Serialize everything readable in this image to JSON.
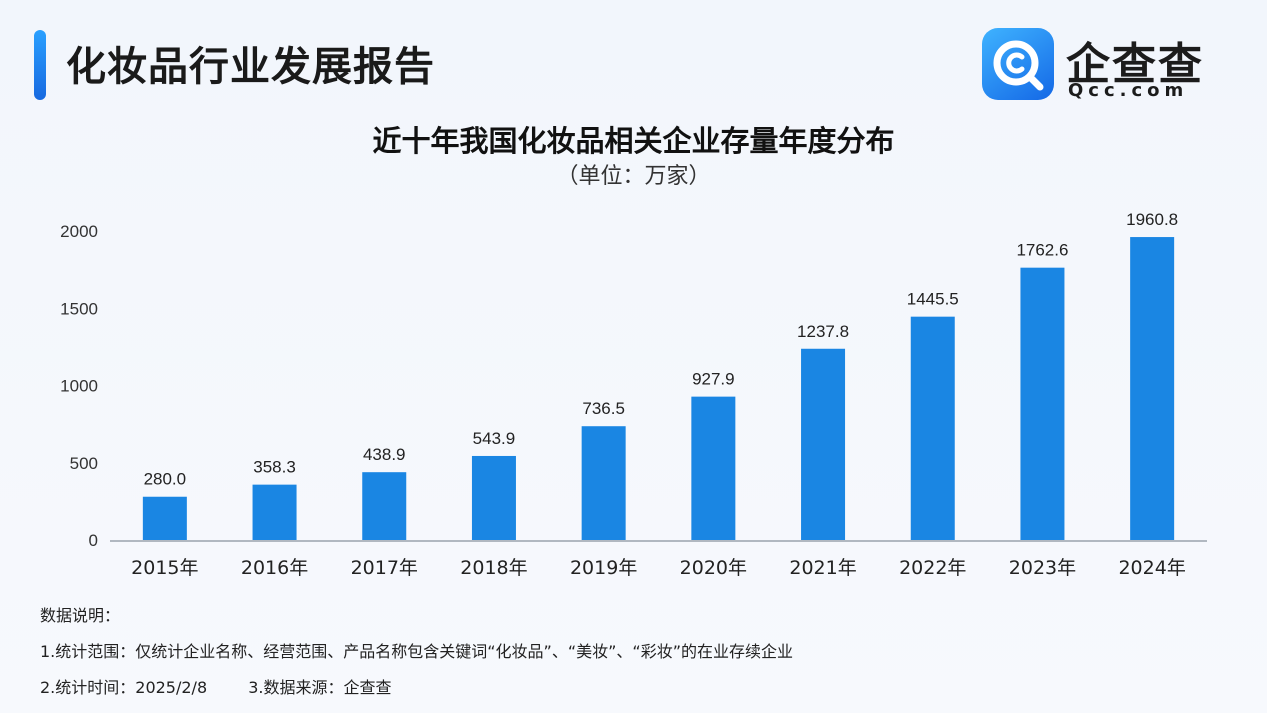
{
  "header": {
    "title": "化妆品行业发展报告"
  },
  "brand": {
    "name": "企查查",
    "domain": "Qcc.com",
    "icon": "qcc-logo-icon"
  },
  "colors": {
    "bar": "#1a86e3",
    "accent": "#1f7cf0",
    "axis": "#9aa3ad"
  },
  "chart_data": {
    "type": "bar",
    "title": "近十年我国化妆品相关企业存量年度分布",
    "subtitle": "（单位：万家）",
    "categories": [
      "2015年",
      "2016年",
      "2017年",
      "2018年",
      "2019年",
      "2020年",
      "2021年",
      "2022年",
      "2023年",
      "2024年"
    ],
    "values": [
      280.0,
      358.3,
      438.9,
      543.9,
      736.5,
      927.9,
      1237.8,
      1445.5,
      1762.6,
      1960.8
    ],
    "value_labels": [
      "280.0",
      "358.3",
      "438.9",
      "543.9",
      "736.5",
      "927.9",
      "1237.8",
      "1445.5",
      "1762.6",
      "1960.8"
    ],
    "yticks": [
      0,
      500,
      1000,
      1500,
      2000
    ],
    "ylim": [
      0,
      2000
    ],
    "xlabel": "",
    "ylabel": "",
    "grid": false
  },
  "notes": {
    "heading": "数据说明：",
    "scope": "1.统计范围：仅统计企业名称、经营范围、产品名称包含关键词“化妆品”、“美妆”、“彩妆”的在业存续企业",
    "time": "2.统计时间：2025/2/8",
    "source": "3.数据来源：企查查"
  }
}
